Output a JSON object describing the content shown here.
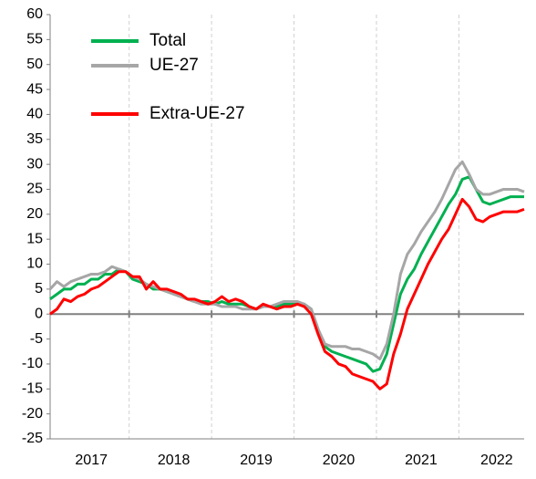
{
  "chart_data": {
    "type": "line",
    "categories": [
      null,
      null,
      null,
      null,
      null,
      null,
      "2017",
      null,
      null,
      null,
      null,
      null,
      null,
      null,
      null,
      null,
      null,
      null,
      "2018",
      null,
      null,
      null,
      null,
      null,
      null,
      null,
      null,
      null,
      null,
      null,
      "2019",
      null,
      null,
      null,
      null,
      null,
      null,
      null,
      null,
      null,
      null,
      null,
      "2020",
      null,
      null,
      null,
      null,
      null,
      null,
      null,
      null,
      null,
      null,
      null,
      "2021",
      null,
      null,
      null,
      null,
      null,
      null,
      null,
      null,
      null,
      null,
      "2022",
      null,
      null,
      null,
      null
    ],
    "series": [
      {
        "name": "Total",
        "color": "#00b050",
        "values": [
          3,
          4,
          5,
          5,
          6,
          6,
          7,
          7,
          8,
          8,
          9,
          8.5,
          7,
          6.5,
          6,
          5,
          5,
          4.5,
          4,
          3.5,
          3,
          2.5,
          2.5,
          2.5,
          2,
          2.5,
          2,
          2,
          2,
          1.5,
          1,
          1.5,
          1.5,
          1.5,
          2,
          2,
          2,
          2,
          1,
          -3,
          -6.5,
          -7.5,
          -8,
          -8.5,
          -9,
          -9.5,
          -10,
          -11.5,
          -11,
          -8,
          -2,
          4,
          7,
          9,
          12,
          14.5,
          17,
          19.5,
          22,
          24,
          27,
          27.5,
          25,
          22.5,
          22,
          22.5,
          23,
          23.5,
          23.5,
          23.5
        ]
      },
      {
        "name": "UE-27",
        "color": "#a6a6a6",
        "values": [
          5,
          6.5,
          5.5,
          6.5,
          7,
          7.5,
          8,
          8,
          8.5,
          9.5,
          9,
          8.5,
          7.5,
          7,
          6,
          5.5,
          5,
          4.5,
          4,
          3.5,
          3,
          2.5,
          2,
          2,
          2,
          1.5,
          1.5,
          1.5,
          1,
          1,
          1,
          1.5,
          1.5,
          2,
          2.5,
          2.5,
          2.5,
          2,
          1,
          -3,
          -6,
          -6.5,
          -6.5,
          -6.5,
          -7,
          -7,
          -7.5,
          -8,
          -9,
          -6,
          0,
          8,
          12,
          14,
          16.5,
          18.5,
          20.5,
          23,
          26,
          29,
          30.5,
          28,
          25,
          24,
          24,
          24.5,
          25,
          25,
          25,
          24.5
        ]
      },
      {
        "name": "Extra-UE-27",
        "color": "#ff0000",
        "values": [
          0,
          1,
          3,
          2.5,
          3.5,
          4,
          5,
          5.5,
          6.5,
          7.5,
          8.5,
          8.5,
          7.5,
          7.5,
          5,
          6.5,
          5,
          5,
          4.5,
          4,
          3,
          3,
          2.5,
          2,
          2.5,
          3.5,
          2.5,
          3,
          2.5,
          1.5,
          1,
          2,
          1.5,
          1,
          1.5,
          1.5,
          2,
          1.5,
          0,
          -4,
          -7.5,
          -8.5,
          -10,
          -10.5,
          -12,
          -12.5,
          -13,
          -13.5,
          -15,
          -14,
          -8,
          -4,
          1,
          4,
          7,
          10,
          12.5,
          15,
          17,
          20,
          23,
          21.5,
          19,
          18.5,
          19.5,
          20,
          20.5,
          20.5,
          20.5,
          21
        ]
      }
    ],
    "ylim": [
      -25,
      60
    ],
    "yticks": [
      -25,
      -20,
      -15,
      -10,
      -5,
      0,
      5,
      10,
      15,
      20,
      25,
      30,
      35,
      40,
      45,
      50,
      55,
      60
    ]
  }
}
